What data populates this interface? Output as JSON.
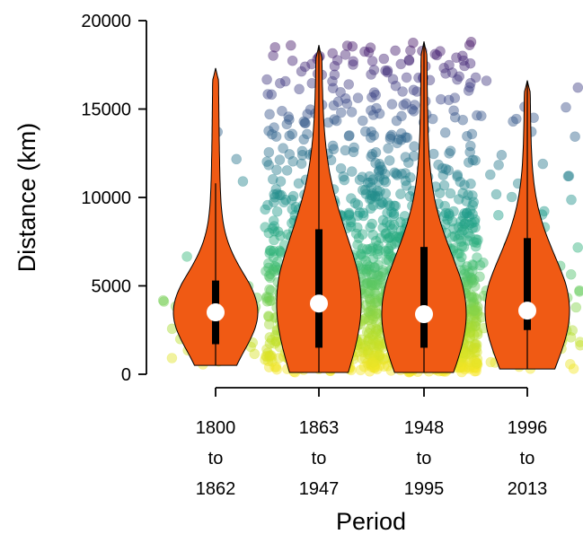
{
  "chart_data": {
    "type": "violin",
    "xlabel": "Period",
    "ylabel": "Distance (km)",
    "ylim": [
      0,
      20000
    ],
    "y_ticks": [
      "0",
      "5000",
      "10000",
      "15000",
      "20000"
    ],
    "categories": [
      {
        "lines": [
          "1800",
          "to",
          "1862"
        ],
        "median": 3500,
        "q1": 1700,
        "q3": 5300,
        "whisker_low": 500,
        "whisker_high": 10800,
        "min": 500,
        "max": 17300,
        "n_points": 45
      },
      {
        "lines": [
          "1863",
          "to",
          "1947"
        ],
        "median": 4000,
        "q1": 1500,
        "q3": 8200,
        "whisker_low": 100,
        "whisker_high": 18500,
        "min": 100,
        "max": 18600,
        "n_points": 600
      },
      {
        "lines": [
          "1948",
          "to",
          "1995"
        ],
        "median": 3400,
        "q1": 1500,
        "q3": 7200,
        "whisker_low": 100,
        "whisker_high": 18700,
        "min": 100,
        "max": 18800,
        "n_points": 1000
      },
      {
        "lines": [
          "1996",
          "to",
          "2013"
        ],
        "median": 3600,
        "q1": 2500,
        "q3": 7700,
        "whisker_low": 300,
        "whisker_high": 16500,
        "min": 300,
        "max": 16600,
        "n_points": 100
      }
    ],
    "violin_color": "#f05a14",
    "point_colormap": "viridis",
    "grid": false,
    "legend": "none"
  }
}
